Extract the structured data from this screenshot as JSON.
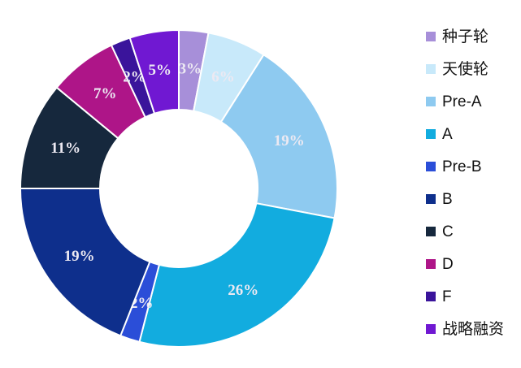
{
  "chart_data": {
    "type": "pie",
    "subtype": "donut",
    "title": "",
    "unit": "%",
    "legend_position": "right",
    "start_angle_deg": 0,
    "direction": "clockwise",
    "categories": [
      "种子轮",
      "天使轮",
      "Pre-A",
      "A",
      "Pre-B",
      "B",
      "C",
      "D",
      "F",
      "战略融资"
    ],
    "values": [
      3,
      6,
      19,
      26,
      2,
      19,
      11,
      7,
      2,
      5
    ],
    "slices": [
      {
        "label": "种子轮",
        "value": 3,
        "pct_label": "3%",
        "color": "#a78fd9"
      },
      {
        "label": "天使轮",
        "value": 6,
        "pct_label": "6%",
        "color": "#c8e9fa"
      },
      {
        "label": "Pre-A",
        "value": 19,
        "pct_label": "19%",
        "color": "#8ecaf0"
      },
      {
        "label": "A",
        "value": 26,
        "pct_label": "26%",
        "color": "#12acdf"
      },
      {
        "label": "Pre-B",
        "value": 2,
        "pct_label": "2%",
        "color": "#2b4ed8"
      },
      {
        "label": "B",
        "value": 19,
        "pct_label": "19%",
        "color": "#0e2f8c"
      },
      {
        "label": "C",
        "value": 11,
        "pct_label": "11%",
        "color": "#16283d"
      },
      {
        "label": "D",
        "value": 7,
        "pct_label": "7%",
        "color": "#ae1588"
      },
      {
        "label": "F",
        "value": 2,
        "pct_label": "2%",
        "color": "#3a149b"
      },
      {
        "label": "战略融资",
        "value": 5,
        "pct_label": "5%",
        "color": "#7018d2"
      }
    ],
    "data_label_color": "#ece9f2",
    "divider_color": "#ffffff",
    "background": "#ffffff",
    "legend_text_color": "#111111"
  }
}
